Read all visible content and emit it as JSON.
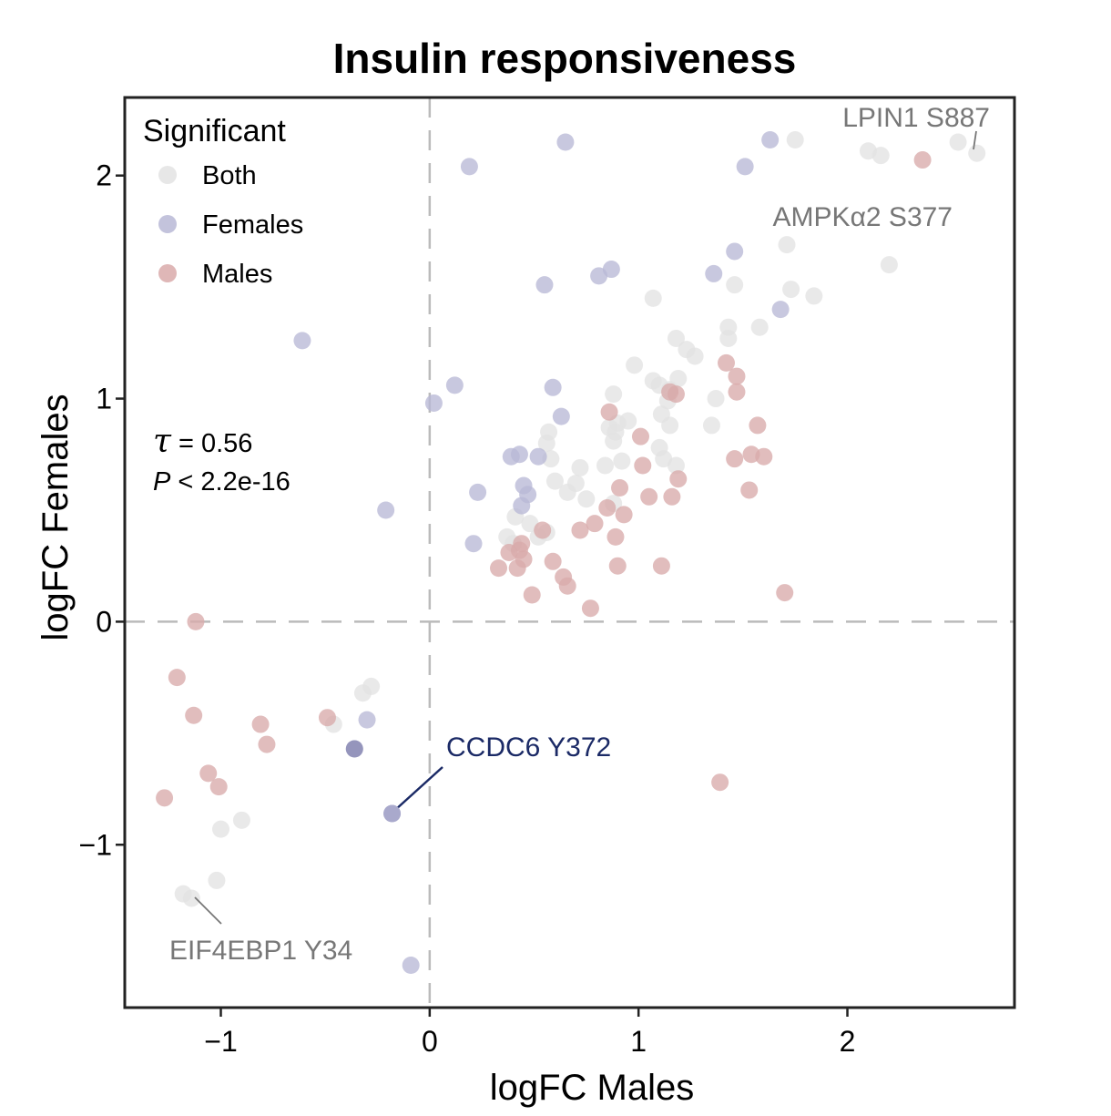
{
  "chart_data": {
    "type": "scatter",
    "title": "Insulin responsiveness",
    "xlabel": "logFC Males",
    "ylabel": "logFC Females",
    "xlim": [
      -1.46,
      2.8
    ],
    "ylim": [
      -1.73,
      2.35
    ],
    "x_ticks": [
      {
        "value": -1,
        "label": "−1"
      },
      {
        "value": 0,
        "label": "0"
      },
      {
        "value": 1,
        "label": "1"
      },
      {
        "value": 2,
        "label": "2"
      }
    ],
    "y_ticks": [
      {
        "value": -1,
        "label": "−1"
      },
      {
        "value": 0,
        "label": "0"
      },
      {
        "value": 1,
        "label": "1"
      },
      {
        "value": 2,
        "label": "2"
      }
    ],
    "grid": false,
    "reference_lines": {
      "x": 0,
      "y": 0
    },
    "legend": {
      "title": "Significant",
      "placement": "top-left",
      "entries": [
        {
          "name": "Both",
          "color": "#e3e3e3"
        },
        {
          "name": "Females",
          "color": "#b8b8d6"
        },
        {
          "name": "Males",
          "color": "#d9aaaa"
        }
      ]
    },
    "stats": {
      "tau_symbol": "τ",
      "tau_text": " = 0.56",
      "p_symbol": "P",
      "p_text": " < 2.2e-16"
    },
    "series": [
      {
        "name": "Both",
        "color": "#e3e3e3",
        "points": [
          [
            1.75,
            2.16
          ],
          [
            2.1,
            2.11
          ],
          [
            2.16,
            2.09
          ],
          [
            2.53,
            2.15
          ],
          [
            2.62,
            2.1
          ],
          [
            1.71,
            1.69
          ],
          [
            2.2,
            1.6
          ],
          [
            1.73,
            1.49
          ],
          [
            1.84,
            1.46
          ],
          [
            1.46,
            1.51
          ],
          [
            1.07,
            1.45
          ],
          [
            1.58,
            1.32
          ],
          [
            1.43,
            1.32
          ],
          [
            1.43,
            1.27
          ],
          [
            1.18,
            1.27
          ],
          [
            1.23,
            1.22
          ],
          [
            1.27,
            1.19
          ],
          [
            0.98,
            1.15
          ],
          [
            1.07,
            1.08
          ],
          [
            1.1,
            1.06
          ],
          [
            1.19,
            1.09
          ],
          [
            1.15,
            1.04
          ],
          [
            1.37,
            1.0
          ],
          [
            0.88,
            1.02
          ],
          [
            1.14,
            0.99
          ],
          [
            1.11,
            0.93
          ],
          [
            0.95,
            0.9
          ],
          [
            0.9,
            0.89
          ],
          [
            0.86,
            0.87
          ],
          [
            0.89,
            0.85
          ],
          [
            1.15,
            0.88
          ],
          [
            0.57,
            0.85
          ],
          [
            1.35,
            0.88
          ],
          [
            0.88,
            0.81
          ],
          [
            0.56,
            0.8
          ],
          [
            1.1,
            0.78
          ],
          [
            1.12,
            0.73
          ],
          [
            0.58,
            0.73
          ],
          [
            0.92,
            0.72
          ],
          [
            0.72,
            0.69
          ],
          [
            0.84,
            0.7
          ],
          [
            1.18,
            0.7
          ],
          [
            0.6,
            0.63
          ],
          [
            0.7,
            0.62
          ],
          [
            0.66,
            0.58
          ],
          [
            0.75,
            0.55
          ],
          [
            0.88,
            0.53
          ],
          [
            0.41,
            0.47
          ],
          [
            0.48,
            0.44
          ],
          [
            0.37,
            0.38
          ],
          [
            0.52,
            0.38
          ],
          [
            0.56,
            0.4
          ],
          [
            0.4,
            0.35
          ],
          [
            -0.28,
            -0.29
          ],
          [
            -0.32,
            -0.32
          ],
          [
            -0.46,
            -0.46
          ],
          [
            -1.0,
            -0.93
          ],
          [
            -0.9,
            -0.89
          ],
          [
            -1.02,
            -1.16
          ],
          [
            -1.18,
            -1.22
          ],
          [
            -1.14,
            -1.24
          ]
        ]
      },
      {
        "name": "Females",
        "color": "#b8b8d6",
        "points": [
          [
            0.65,
            2.15
          ],
          [
            1.63,
            2.16
          ],
          [
            0.19,
            2.04
          ],
          [
            1.51,
            2.04
          ],
          [
            1.46,
            1.66
          ],
          [
            0.87,
            1.58
          ],
          [
            0.81,
            1.55
          ],
          [
            1.36,
            1.56
          ],
          [
            0.55,
            1.51
          ],
          [
            1.68,
            1.4
          ],
          [
            -0.61,
            1.26
          ],
          [
            0.12,
            1.06
          ],
          [
            0.59,
            1.05
          ],
          [
            0.02,
            0.98
          ],
          [
            0.63,
            0.92
          ],
          [
            0.43,
            0.75
          ],
          [
            0.39,
            0.74
          ],
          [
            0.52,
            0.74
          ],
          [
            0.45,
            0.61
          ],
          [
            0.47,
            0.57
          ],
          [
            0.44,
            0.52
          ],
          [
            0.23,
            0.58
          ],
          [
            -0.21,
            0.5
          ],
          [
            0.21,
            0.35
          ],
          [
            -0.3,
            -0.44
          ],
          [
            -0.36,
            -0.57
          ],
          [
            -0.18,
            -0.86
          ],
          [
            -0.09,
            -1.54
          ]
        ]
      },
      {
        "name": "Males",
        "color": "#d9aaaa",
        "points": [
          [
            2.36,
            2.07
          ],
          [
            1.42,
            1.16
          ],
          [
            1.47,
            1.1
          ],
          [
            1.15,
            1.03
          ],
          [
            1.18,
            1.02
          ],
          [
            1.47,
            1.03
          ],
          [
            0.86,
            0.94
          ],
          [
            1.57,
            0.88
          ],
          [
            1.01,
            0.83
          ],
          [
            1.46,
            0.73
          ],
          [
            1.54,
            0.75
          ],
          [
            1.6,
            0.74
          ],
          [
            1.02,
            0.7
          ],
          [
            1.19,
            0.64
          ],
          [
            0.91,
            0.6
          ],
          [
            1.53,
            0.59
          ],
          [
            1.05,
            0.56
          ],
          [
            1.16,
            0.56
          ],
          [
            0.85,
            0.51
          ],
          [
            0.93,
            0.48
          ],
          [
            0.79,
            0.44
          ],
          [
            0.72,
            0.41
          ],
          [
            0.54,
            0.41
          ],
          [
            0.89,
            0.38
          ],
          [
            0.44,
            0.35
          ],
          [
            0.43,
            0.32
          ],
          [
            0.38,
            0.31
          ],
          [
            0.45,
            0.28
          ],
          [
            0.59,
            0.27
          ],
          [
            0.33,
            0.24
          ],
          [
            0.42,
            0.24
          ],
          [
            0.9,
            0.25
          ],
          [
            1.11,
            0.25
          ],
          [
            0.64,
            0.2
          ],
          [
            0.66,
            0.16
          ],
          [
            0.49,
            0.12
          ],
          [
            1.7,
            0.13
          ],
          [
            0.77,
            0.06
          ],
          [
            -1.12,
            0.0
          ],
          [
            -1.21,
            -0.25
          ],
          [
            -1.13,
            -0.42
          ],
          [
            -0.81,
            -0.46
          ],
          [
            -0.78,
            -0.55
          ],
          [
            -0.49,
            -0.43
          ],
          [
            -1.06,
            -0.68
          ],
          [
            -1.01,
            -0.74
          ],
          [
            -1.27,
            -0.79
          ],
          [
            1.39,
            -0.72
          ]
        ]
      }
    ],
    "annotations": [
      {
        "label": "LPIN1 S887",
        "point": [
          2.62,
          2.1
        ],
        "color": "#777777"
      },
      {
        "label": "AMPKα2 S377",
        "point": [
          2.53,
          2.15
        ],
        "color": "#777777"
      },
      {
        "label": "CCDC6 Y372",
        "point": [
          -0.18,
          -0.86
        ],
        "color": "#1b2a66"
      },
      {
        "label": "EIF4EBP1 Y34",
        "point": [
          -1.14,
          -1.24
        ],
        "color": "#777777"
      }
    ]
  }
}
